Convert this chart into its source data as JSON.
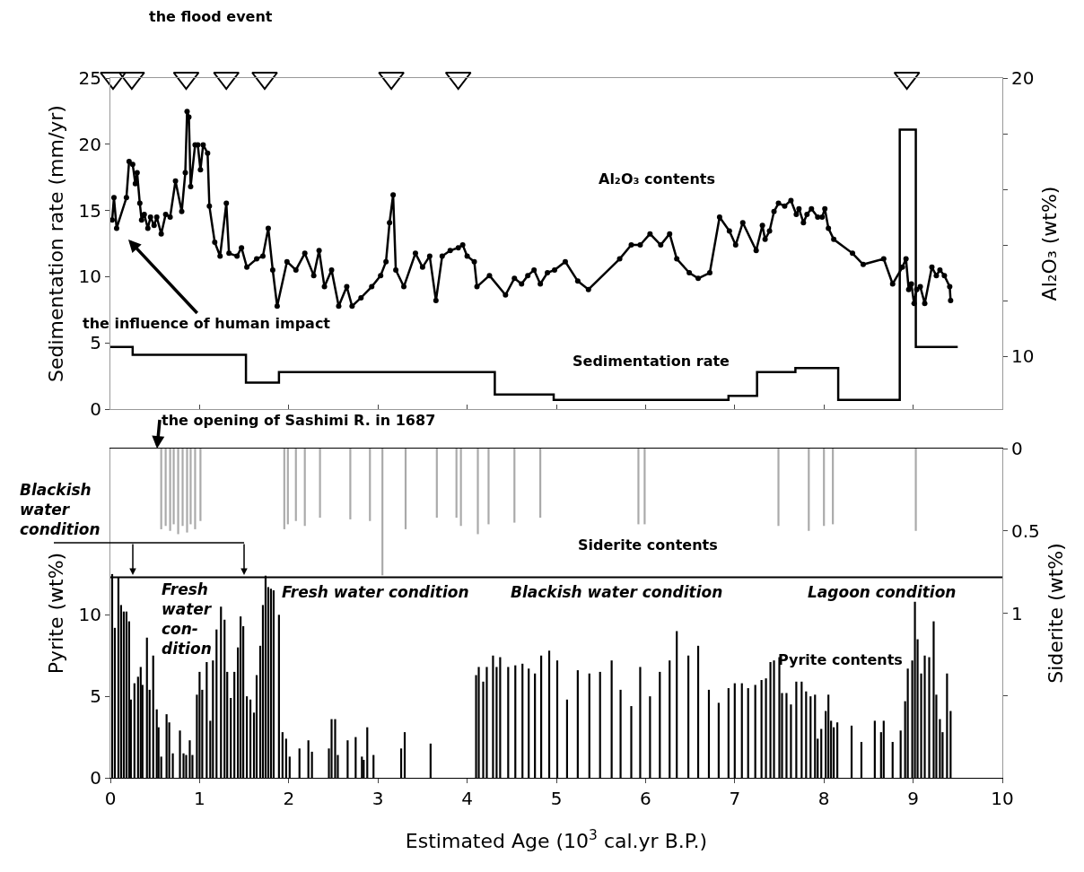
{
  "chart_data": [
    {
      "type": "line",
      "xlim": [
        0,
        10
      ],
      "xticks": [
        0,
        1,
        2,
        3,
        4,
        5,
        6,
        7,
        8,
        9,
        10
      ],
      "tick_labels": "y",
      "ylabel": "Sedimentation rate (mm/yr)",
      "ylim": [
        0,
        25
      ],
      "yticks": [
        0,
        5,
        10,
        15,
        20,
        25
      ],
      "y2label": "Al₂O₃ (wt%)",
      "y2lim": [
        8.1,
        20
      ],
      "y2ticks": [
        10,
        {
          "value": 12,
          "label": null
        },
        {
          "value": 14,
          "label": null
        },
        {
          "value": 16,
          "label": null
        },
        {
          "value": 18,
          "label": null
        },
        20
      ],
      "annotations": [
        "the flood event",
        "Al₂O₃ contents",
        "Sedimentation rate",
        "the influence of human impact"
      ],
      "series": [
        {
          "type": "step",
          "axis": "y",
          "color": "#000000",
          "x": [
            0,
            0.25,
            1.52,
            1.89,
            4.31,
            4.97,
            6.93,
            7.25,
            7.68,
            8.16,
            8.85,
            9.03,
            9.5
          ],
          "values": [
            4.7,
            4.1,
            2.0,
            2.8,
            1.1,
            0.7,
            1.0,
            2.8,
            3.1,
            0.7,
            21.1,
            4.7,
            4.7
          ]
        },
        {
          "axis": "y2",
          "color": "#000000",
          "marker": "circle",
          "x": [
            0.02,
            0.04,
            0.07,
            0.18,
            0.21,
            0.25,
            0.28,
            0.3,
            0.33,
            0.35,
            0.38,
            0.42,
            0.45,
            0.49,
            0.52,
            0.57,
            0.62,
            0.67,
            0.73,
            0.8,
            0.84,
            0.86,
            0.88,
            0.9,
            0.95,
            0.98,
            1.01,
            1.04,
            1.09,
            1.11,
            1.17,
            1.23,
            1.3,
            1.33,
            1.42,
            1.47,
            1.53,
            1.64,
            1.71,
            1.77,
            1.82,
            1.87,
            1.98,
            2.08,
            2.18,
            2.28,
            2.34,
            2.4,
            2.48,
            2.56,
            2.65,
            2.71,
            2.81,
            2.93,
            3.03,
            3.09,
            3.13,
            3.17,
            3.2,
            3.29,
            3.42,
            3.5,
            3.58,
            3.65,
            3.72,
            3.81,
            3.9,
            3.95,
            4.0,
            4.08,
            4.11,
            4.25,
            4.43,
            4.53,
            4.61,
            4.68,
            4.75,
            4.82,
            4.9,
            4.98,
            5.1,
            5.24,
            5.36,
            5.71,
            5.84,
            5.94,
            6.05,
            6.17,
            6.27,
            6.35,
            6.49,
            6.59,
            6.72,
            6.83,
            6.94,
            7.01,
            7.09,
            7.24,
            7.31,
            7.34,
            7.39,
            7.44,
            7.49,
            7.56,
            7.63,
            7.69,
            7.72,
            7.77,
            7.81,
            7.86,
            7.93,
            7.98,
            8.01,
            8.05,
            8.11,
            8.32,
            8.44,
            8.67,
            8.77,
            8.88,
            8.92,
            8.95,
            8.98,
            9.01,
            9.04,
            9.08,
            9.13,
            9.21,
            9.26,
            9.3,
            9.35,
            9.41,
            9.42
          ],
          "values": [
            14.9,
            15.7,
            14.6,
            15.7,
            17.0,
            16.9,
            16.2,
            16.6,
            15.5,
            14.9,
            15.1,
            14.6,
            15.0,
            14.7,
            15.0,
            14.4,
            15.1,
            15.0,
            16.3,
            15.2,
            16.6,
            18.8,
            18.6,
            16.1,
            17.6,
            17.6,
            16.7,
            17.6,
            17.3,
            15.4,
            14.1,
            13.6,
            15.5,
            13.7,
            13.6,
            13.9,
            13.2,
            13.5,
            13.6,
            14.6,
            13.1,
            11.8,
            13.4,
            13.1,
            13.7,
            12.9,
            13.8,
            12.5,
            13.1,
            11.8,
            12.5,
            11.8,
            12.1,
            12.5,
            12.9,
            13.4,
            14.8,
            15.8,
            13.1,
            12.5,
            13.7,
            13.2,
            13.6,
            12.0,
            13.6,
            13.8,
            13.9,
            14.0,
            13.6,
            13.4,
            12.5,
            12.9,
            12.2,
            12.8,
            12.6,
            12.9,
            13.1,
            12.6,
            13.0,
            13.1,
            13.4,
            12.7,
            12.4,
            13.5,
            14.0,
            14.0,
            14.4,
            14.0,
            14.4,
            13.5,
            13.0,
            12.8,
            13.0,
            15.0,
            14.5,
            14.0,
            14.8,
            13.8,
            14.7,
            14.2,
            14.5,
            15.2,
            15.5,
            15.4,
            15.6,
            15.1,
            15.3,
            14.8,
            15.1,
            15.3,
            15.0,
            15.0,
            15.3,
            14.6,
            14.2,
            13.7,
            13.3,
            13.5,
            12.6,
            13.2,
            13.5,
            12.4,
            12.6,
            11.9,
            12.4,
            12.5,
            11.9,
            13.2,
            12.9,
            13.1,
            12.9,
            12.5,
            12.0
          ]
        },
        {
          "type": "scatter",
          "axis": "y",
          "color": "#000000",
          "marker": "triangle",
          "x": [
            0.03,
            0.24,
            0.85,
            1.3,
            1.73,
            3.15,
            3.9,
            8.93
          ],
          "values": [
            25,
            25,
            25,
            25,
            25,
            25,
            25,
            25
          ]
        }
      ]
    },
    {
      "type": "bar",
      "xlim": [
        0,
        10
      ],
      "xticks": [
        0,
        1,
        2,
        3,
        4,
        5,
        6,
        7,
        8,
        9,
        10
      ],
      "xlabel": "Estimated Age (10$^{3}$ cal.yr B.P.)",
      "ylabel": "Pyrite (wt%)",
      "ylim": [
        0,
        20.2
      ],
      "yticks": [
        0,
        5,
        10
      ],
      "y2label": "Siderite (wt%)",
      "y2lim": [
        2,
        0
      ],
      "y2ticks": [
        0,
        0.5,
        1,
        {
          "value": 1.5,
          "label": null
        }
      ],
      "annotations": [
        "Blackish water condition",
        "Siderite contents",
        "Pyrite contents",
        "the opening of Sashimi R. in 1687",
        "Fresh water con-dition",
        "Fresh water condition",
        "Blackish water condition",
        "Lagoon condition"
      ],
      "ref_lines": [
        {
          "axis": "y",
          "value": 12.3,
          "color": "#000000"
        }
      ],
      "series": [
        {
          "type": "bar",
          "axis": "y2",
          "color": "#aaaaaa",
          "x": [
            0.57,
            0.62,
            0.67,
            0.71,
            0.76,
            0.81,
            0.86,
            0.9,
            0.95,
            1.01,
            1.95,
            1.99,
            2.08,
            2.18,
            2.35,
            2.69,
            2.91,
            3.05,
            3.31,
            3.66,
            3.88,
            3.93,
            4.12,
            4.24,
            4.53,
            4.82,
            5.92,
            5.99,
            7.49,
            7.83,
            8.0,
            8.1,
            9.03
          ],
          "values": [
            0.49,
            0.47,
            0.5,
            0.46,
            0.52,
            0.47,
            0.51,
            0.46,
            0.49,
            0.44,
            0.49,
            0.46,
            0.44,
            0.47,
            0.42,
            0.43,
            0.44,
            0.77,
            0.49,
            0.42,
            0.42,
            0.47,
            0.52,
            0.46,
            0.45,
            0.42,
            0.46,
            0.46,
            0.47,
            0.5,
            0.47,
            0.46,
            0.5
          ]
        },
        {
          "axis": "y",
          "color": "#000000",
          "x": [
            0.02,
            0.05,
            0.09,
            0.12,
            0.15,
            0.18,
            0.21,
            0.23,
            0.27,
            0.31,
            0.34,
            0.36,
            0.41,
            0.44,
            0.48,
            0.52,
            0.54,
            0.57,
            0.63,
            0.66,
            0.7,
            0.78,
            0.82,
            0.85,
            0.89,
            0.92,
            0.97,
            1.0,
            1.03,
            1.08,
            1.12,
            1.15,
            1.19,
            1.24,
            1.28,
            1.31,
            1.35,
            1.39,
            1.43,
            1.46,
            1.49,
            1.53,
            1.57,
            1.61,
            1.64,
            1.68,
            1.71,
            1.74,
            1.77,
            1.8,
            1.83,
            1.89,
            1.93,
            1.97,
            2.01,
            2.12,
            2.22,
            2.26,
            2.45,
            2.48,
            2.52,
            2.55,
            2.66,
            2.75,
            2.82,
            2.84,
            2.88,
            2.95,
            3.26,
            3.3,
            3.59,
            4.1,
            4.13,
            4.18,
            4.22,
            4.29,
            4.33,
            4.37,
            4.46,
            4.54,
            4.62,
            4.69,
            4.76,
            4.83,
            4.92,
            5.01,
            5.12,
            5.24,
            5.37,
            5.49,
            5.62,
            5.72,
            5.84,
            5.94,
            6.05,
            6.16,
            6.27,
            6.35,
            6.48,
            6.59,
            6.71,
            6.82,
            6.93,
            7.0,
            7.08,
            7.15,
            7.23,
            7.3,
            7.35,
            7.4,
            7.44,
            7.5,
            7.53,
            7.58,
            7.63,
            7.69,
            7.75,
            7.8,
            7.85,
            7.9,
            7.93,
            7.97,
            8.02,
            8.05,
            8.08,
            8.11,
            8.15,
            8.31,
            8.42,
            8.57,
            8.64,
            8.67,
            8.77,
            8.86,
            8.91,
            8.94,
            8.99,
            9.02,
            9.05,
            9.09,
            9.13,
            9.18,
            9.23,
            9.26,
            9.3,
            9.33,
            9.38,
            9.42
          ],
          "values": [
            12.5,
            9.2,
            12.3,
            10.6,
            10.2,
            10.2,
            9.6,
            4.8,
            5.8,
            6.2,
            6.8,
            5.7,
            8.6,
            5.4,
            7.5,
            4.2,
            3.1,
            1.3,
            3.9,
            3.4,
            1.5,
            2.9,
            1.5,
            1.4,
            2.3,
            1.4,
            5.1,
            6.5,
            5.4,
            7.1,
            3.5,
            7.2,
            9.1,
            10.5,
            9.7,
            6.5,
            4.9,
            6.5,
            8.0,
            9.9,
            9.3,
            5.0,
            4.8,
            4.0,
            6.3,
            8.1,
            10.6,
            12.4,
            11.7,
            11.6,
            11.5,
            10.0,
            2.8,
            2.4,
            1.3,
            1.8,
            2.3,
            1.6,
            1.8,
            3.6,
            3.6,
            1.4,
            2.3,
            2.5,
            1.3,
            1.1,
            3.1,
            1.4,
            1.8,
            2.8,
            2.1,
            6.3,
            6.8,
            5.9,
            6.8,
            7.5,
            6.8,
            7.4,
            6.8,
            6.9,
            7.0,
            6.7,
            6.4,
            7.5,
            7.8,
            7.2,
            4.8,
            6.6,
            6.4,
            6.5,
            7.2,
            5.4,
            4.4,
            6.8,
            5.0,
            6.5,
            7.2,
            9.0,
            7.5,
            8.1,
            5.4,
            4.6,
            5.5,
            5.8,
            5.8,
            5.5,
            5.7,
            6.0,
            6.1,
            7.1,
            7.2,
            7.4,
            5.2,
            5.2,
            4.5,
            5.9,
            5.9,
            5.3,
            5.0,
            5.1,
            2.4,
            3.0,
            4.1,
            5.1,
            3.5,
            3.1,
            3.4,
            3.2,
            2.2,
            3.5,
            2.8,
            3.5,
            2.2,
            2.9,
            4.7,
            6.7,
            7.2,
            10.8,
            8.5,
            6.4,
            7.5,
            7.4,
            9.6,
            5.1,
            3.6,
            2.8,
            6.4,
            4.1
          ]
        }
      ]
    }
  ]
}
